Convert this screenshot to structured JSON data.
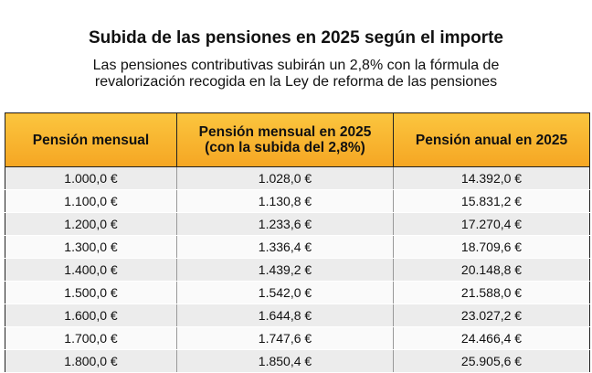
{
  "header": {
    "title": "Subida de las pensiones en 2025 según el importe",
    "subtitle": [
      "Las pensiones contributivas subirán un 2,8% con la fórmula de",
      "revalorización recogida en la Ley de reforma de las pensiones"
    ]
  },
  "table": {
    "columns": [
      [
        "Pensión mensual"
      ],
      [
        "Pensión mensual en 2025",
        "(con la subida del 2,8%)"
      ],
      [
        "Pensión anual en 2025"
      ]
    ],
    "rows": [
      [
        "1.000,0 €",
        "1.028,0 €",
        "14.392,0 €"
      ],
      [
        "1.100,0 €",
        "1.130,8 €",
        "15.831,2 €"
      ],
      [
        "1.200,0 €",
        "1.233,6 €",
        "17.270,4 €"
      ],
      [
        "1.300,0 €",
        "1.336,4 €",
        "18.709,6 €"
      ],
      [
        "1.400,0 €",
        "1.439,2 €",
        "20.148,8 €"
      ],
      [
        "1.500,0 €",
        "1.542,0 €",
        "21.588,0 €"
      ],
      [
        "1.600,0 €",
        "1.644,8 €",
        "23.027,2 €"
      ],
      [
        "1.700,0 €",
        "1.747,6 €",
        "24.466,4 €"
      ],
      [
        "1.800,0 €",
        "1.850,4 €",
        "25.905,6 €"
      ]
    ]
  }
}
